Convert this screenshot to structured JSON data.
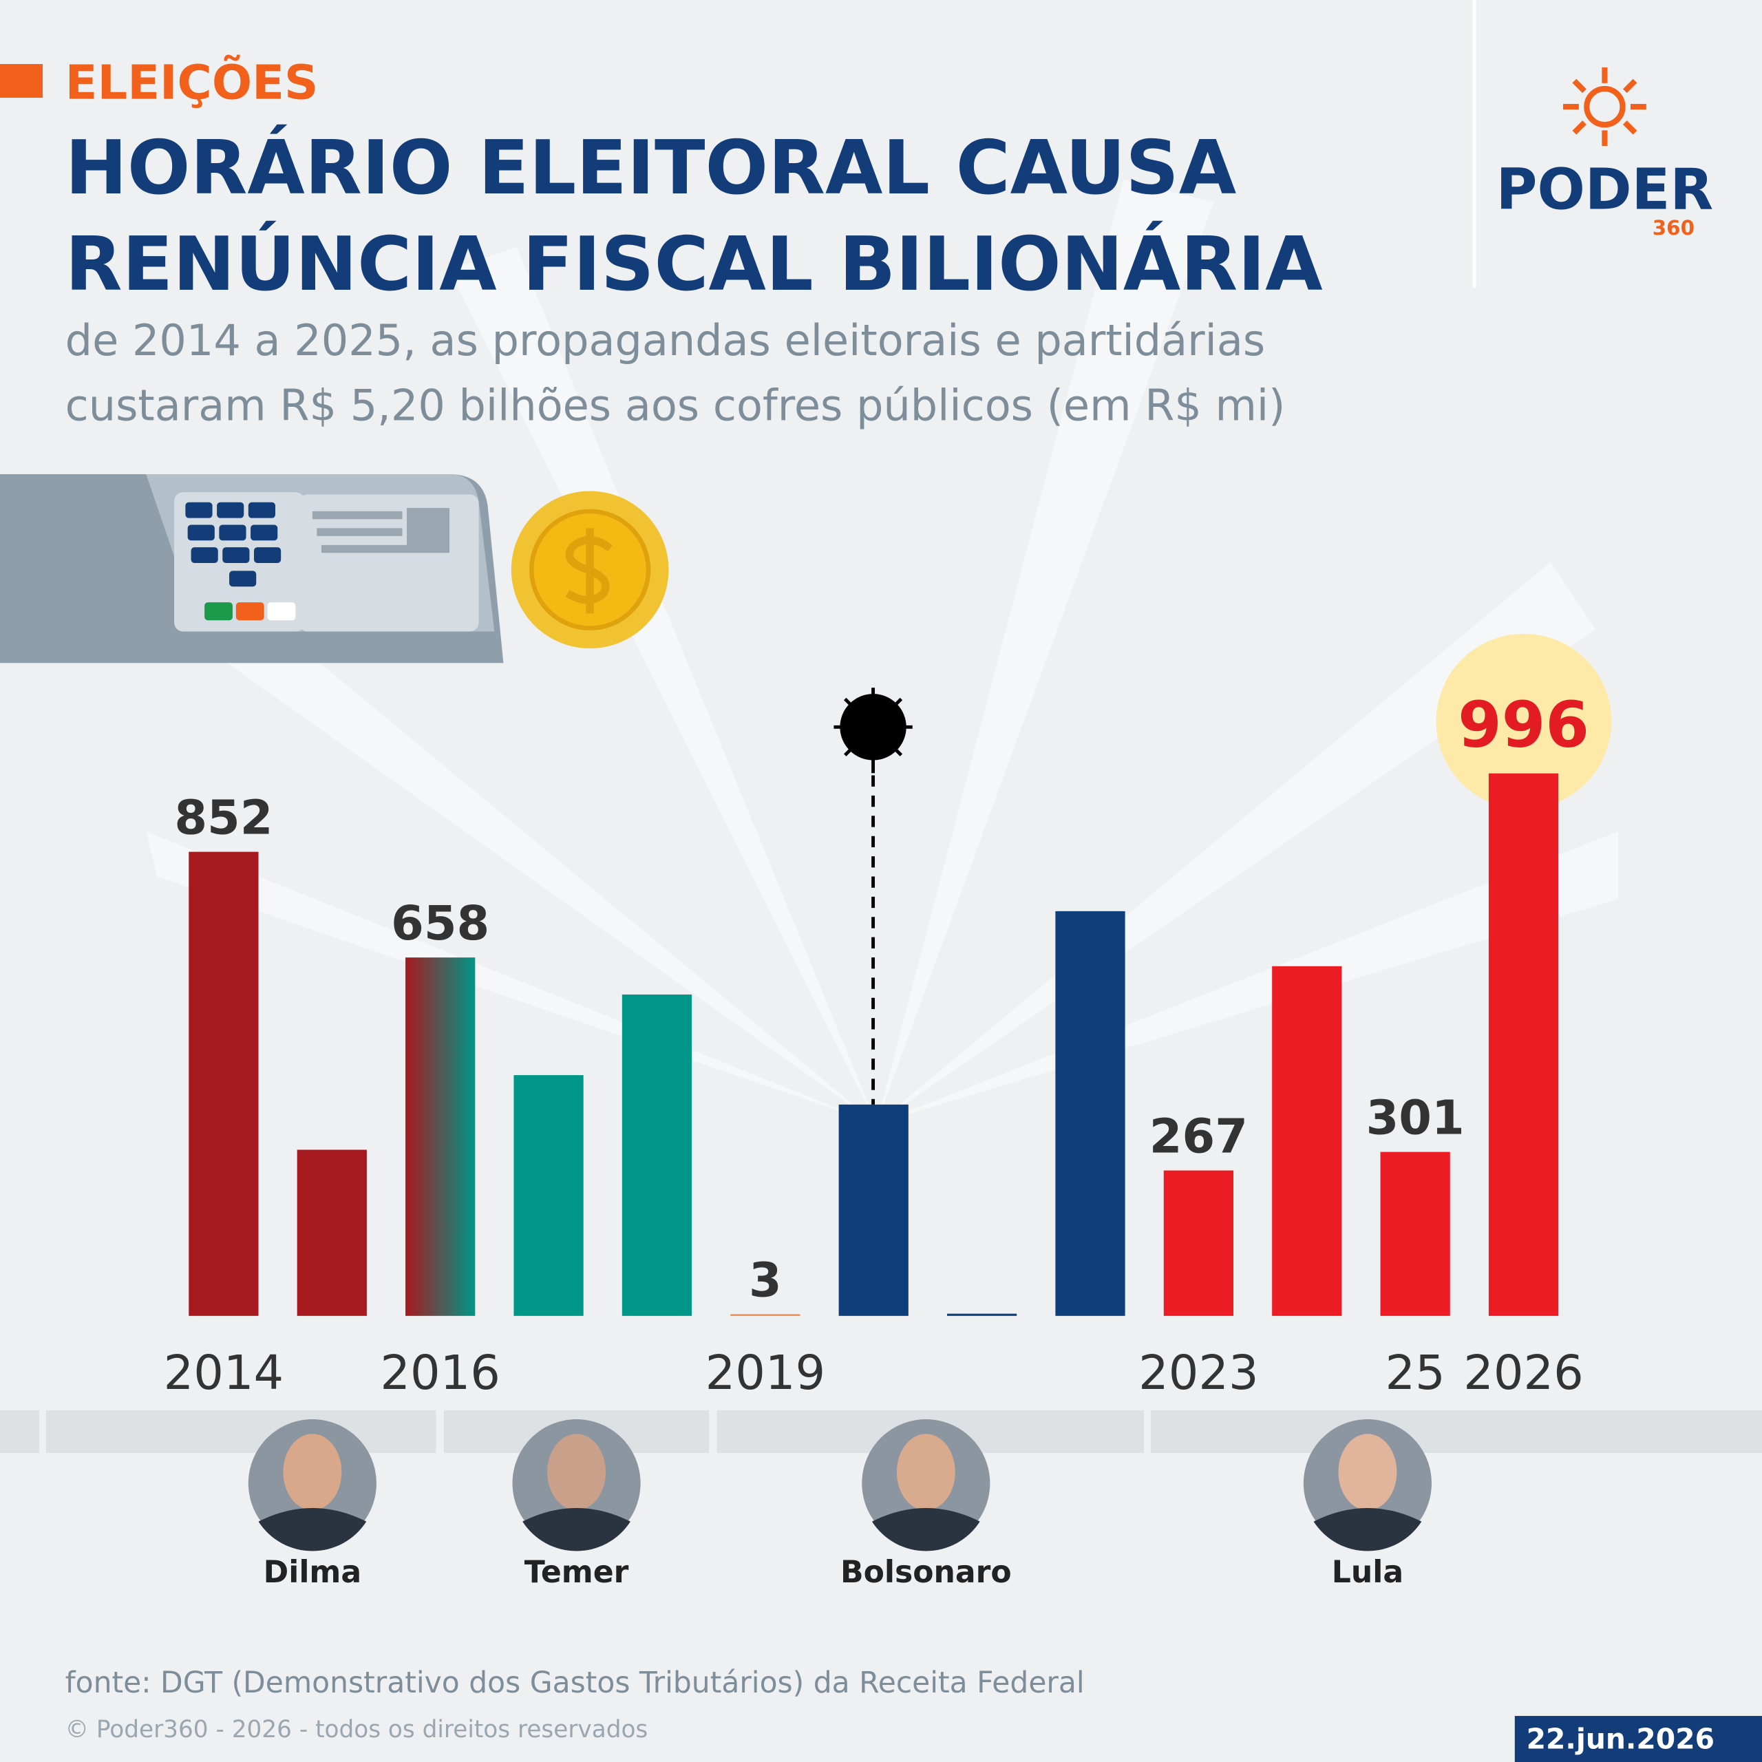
{
  "chart_data": {
    "type": "bar",
    "kicker": "ELEIÇÕES",
    "title": [
      "HORÁRIO ELEITORAL CAUSA",
      "RENÚNCIA FISCAL BILIONÁRIA"
    ],
    "subtitle": [
      "de 2014 a 2025, as propagandas eleitorais e partidárias",
      "custaram R$ 5,20 bilhões aos cofres públicos (em R$ mi)"
    ],
    "brand": "PODER",
    "brand_number": "360",
    "categories": [
      "2014",
      null,
      "2016",
      null,
      null,
      "2019",
      null,
      null,
      null,
      "2023",
      null,
      "25",
      "2026"
    ],
    "values": [
      852,
      305,
      658,
      442,
      590,
      3,
      388,
      4,
      743,
      267,
      642,
      301,
      996
    ],
    "value_labels": [
      "852",
      null,
      "658",
      null,
      null,
      "3",
      null,
      null,
      null,
      "267",
      null,
      "301",
      "996"
    ],
    "colors": [
      "#a6191e",
      "#a6191e",
      [
        "#a6191e",
        "#009688"
      ],
      "#009688",
      "#009688",
      "#f08a4b",
      "#0f3f7a",
      "#0f3f7a",
      "#0f3f7a",
      "#ec1c24",
      "#ec1c24",
      "#ec1c24",
      "#ec1c24"
    ],
    "presidents": [
      "Dilma",
      "Temer",
      "Bolsonaro",
      "Lula"
    ],
    "source": "fonte: DGT (Demonstrativo dos Gastos Tributários) da Receita Federal",
    "copyright": "© Poder360 - 2026 - todos os direitos reservados",
    "date": "22.jun.2026"
  }
}
